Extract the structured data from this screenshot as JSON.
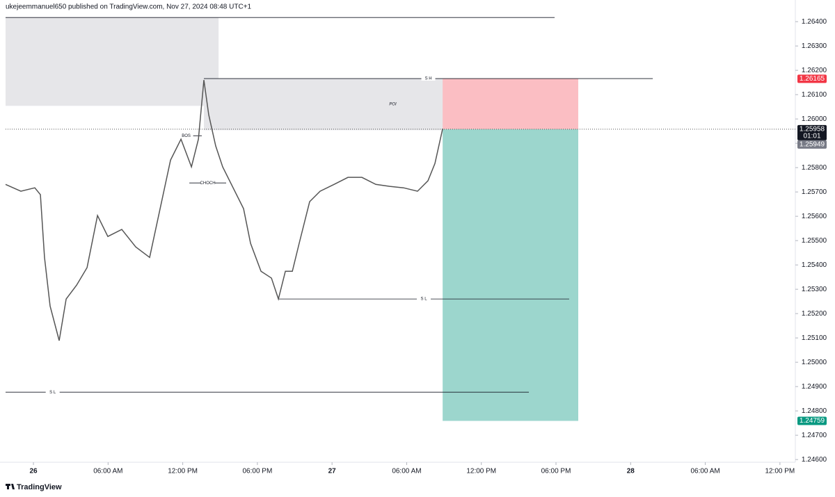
{
  "chart_data": {
    "type": "line",
    "title": "ukejeemmanuel650 published on TradingView.com, Nov 27, 2024 08:48 UTC+1",
    "brand": "TradingView",
    "color": "#555555",
    "x": [
      -2.24,
      -1.01,
      0.11,
      0.56,
      0.89,
      1.34,
      2.07,
      2.63,
      3.47,
      4.31,
      5.15,
      5.98,
      7.1,
      8.22,
      9.34,
      10.18,
      11.02,
      11.86,
      12.7,
      13.26,
      13.7,
      14.09,
      14.65,
      15.21,
      16.05,
      16.89,
      17.45,
      18.29,
      19.13,
      19.69,
      20.25,
      20.81,
      21.36,
      22.2,
      23.04,
      24.16,
      25.28,
      26.4,
      27.52,
      28.64,
      29.75,
      30.87,
      31.71,
      32.27,
      32.89
    ],
    "values": [
      1.25731,
      1.25703,
      1.25717,
      1.25689,
      1.25431,
      1.25231,
      1.25089,
      1.2526,
      1.25317,
      1.25389,
      1.25603,
      1.25517,
      1.25546,
      1.25474,
      1.25431,
      1.25631,
      1.25831,
      1.25917,
      1.25803,
      1.25917,
      1.2616,
      1.26017,
      1.25889,
      1.25803,
      1.25717,
      1.25631,
      1.25489,
      1.25374,
      1.25346,
      1.2526,
      1.25374,
      1.25374,
      1.25489,
      1.2566,
      1.25703,
      1.25731,
      1.2576,
      1.2576,
      1.25731,
      1.25723,
      1.25717,
      1.25703,
      1.25746,
      1.25817,
      1.2596
    ],
    "xlim": [
      -2.24,
      61.07
    ],
    "ylim": [
      1.24589,
      1.26489
    ],
    "xticks": [
      {
        "value": 0,
        "label": "26"
      },
      {
        "value": 6,
        "label": "06:00 AM"
      },
      {
        "value": 12,
        "label": "12:00 PM"
      },
      {
        "value": 18,
        "label": "06:00 PM"
      },
      {
        "value": 24,
        "label": "27"
      },
      {
        "value": 30,
        "label": "06:00 AM"
      },
      {
        "value": 36,
        "label": "12:00 PM"
      },
      {
        "value": 42,
        "label": "06:00 PM"
      },
      {
        "value": 48,
        "label": "28"
      },
      {
        "value": 54,
        "label": "06:00 AM"
      },
      {
        "value": 60,
        "label": "12:00 PM"
      }
    ],
    "yticks": [
      {
        "value": 1.264,
        "label": "1.26400"
      },
      {
        "value": 1.263,
        "label": "1.26300"
      },
      {
        "value": 1.262,
        "label": "1.26200"
      },
      {
        "value": 1.261,
        "label": "1.26100"
      },
      {
        "value": 1.26,
        "label": "1.26000"
      },
      {
        "value": 1.259,
        "label": "1.25900"
      },
      {
        "value": 1.258,
        "label": "1.25800"
      },
      {
        "value": 1.257,
        "label": "1.25700"
      },
      {
        "value": 1.256,
        "label": "1.25600"
      },
      {
        "value": 1.255,
        "label": "1.25500"
      },
      {
        "value": 1.254,
        "label": "1.25400"
      },
      {
        "value": 1.253,
        "label": "1.25300"
      },
      {
        "value": 1.252,
        "label": "1.25200"
      },
      {
        "value": 1.251,
        "label": "1.25100"
      },
      {
        "value": 1.25,
        "label": "1.25000"
      },
      {
        "value": 1.249,
        "label": "1.24900"
      },
      {
        "value": 1.248,
        "label": "1.24800"
      },
      {
        "value": 1.247,
        "label": "1.24700"
      },
      {
        "value": 1.246,
        "label": "1.24600"
      }
    ],
    "annotations": [
      {
        "kind": "zone",
        "x": [
          -2.24,
          14.88
        ],
        "y": [
          1.26054,
          1.26417
        ],
        "color": "#e6e6e9"
      },
      {
        "kind": "zone",
        "label": "POI",
        "x": [
          13.7,
          32.89
        ],
        "y": [
          1.25954,
          1.26166
        ],
        "color": "#e6e6e9"
      },
      {
        "kind": "line",
        "x": [
          -2.24,
          41.89
        ],
        "y": 1.26417
      },
      {
        "kind": "line",
        "label": "S H",
        "x": [
          13.7,
          49.78
        ],
        "y": 1.26166
      },
      {
        "kind": "line",
        "label": "S L",
        "x": [
          19.69,
          43.06
        ],
        "y": 1.2526
      },
      {
        "kind": "line",
        "label": "S L",
        "x": [
          -2.24,
          39.82
        ],
        "y": 1.24877
      },
      {
        "kind": "line",
        "label": "BOS",
        "x": [
          12.14,
          13.53
        ],
        "y": 1.25931
      },
      {
        "kind": "line",
        "label": "CHOCH",
        "x": [
          12.53,
          15.49
        ],
        "y": 1.25737
      }
    ],
    "position": {
      "x": [
        32.89,
        43.79
      ],
      "entry": 1.25958,
      "stop": 1.26165,
      "target": 1.24759,
      "stop_color": "rgba(242,54,69,0.32)",
      "target_color": "rgba(8,153,129,0.4)"
    },
    "price_labels": [
      {
        "value": 1.26165,
        "label": "1.26165",
        "color": "#f23645"
      },
      {
        "value": 1.25958,
        "label": "1.25958",
        "color": "#131722",
        "countdown": "01:01"
      },
      {
        "value": 1.25949,
        "label": "1.25949",
        "color": "#787b86"
      },
      {
        "value": 1.24759,
        "label": "1.24759",
        "color": "#089981"
      }
    ]
  }
}
